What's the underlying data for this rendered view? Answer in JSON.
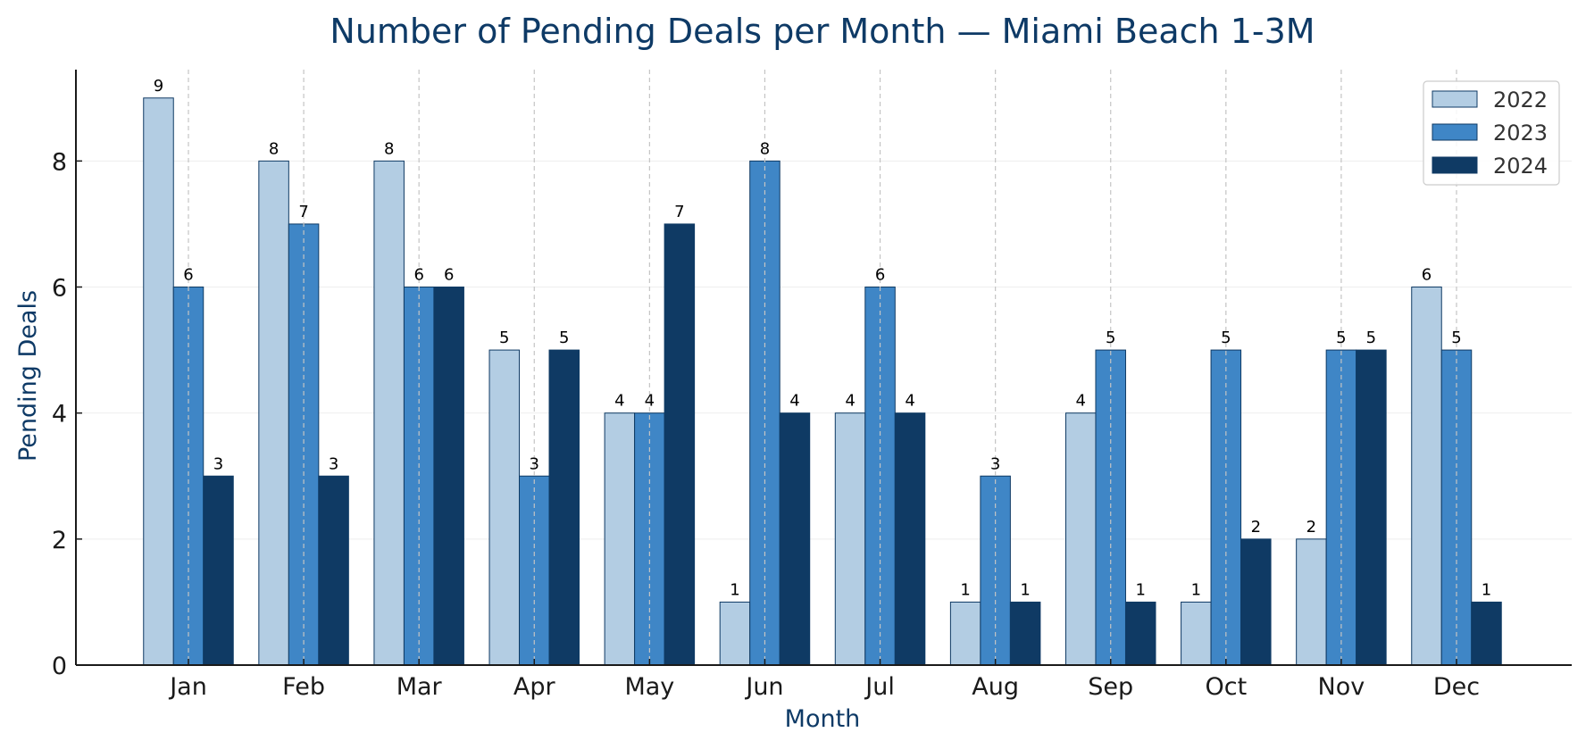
{
  "chart_data": {
    "type": "bar",
    "title": "Number of Pending Deals per Month — Miami Beach 1-3M",
    "xlabel": "Month",
    "ylabel": "Pending Deals",
    "categories": [
      "Jan",
      "Feb",
      "Mar",
      "Apr",
      "May",
      "Jun",
      "Jul",
      "Aug",
      "Sep",
      "Oct",
      "Nov",
      "Dec"
    ],
    "series": [
      {
        "name": "2022",
        "color": "#b3cde3",
        "values": [
          9,
          8,
          8,
          5,
          4,
          1,
          4,
          1,
          4,
          1,
          2,
          6
        ]
      },
      {
        "name": "2023",
        "color": "#3f86c6",
        "values": [
          6,
          7,
          6,
          3,
          4,
          8,
          6,
          3,
          5,
          5,
          5,
          5
        ]
      },
      {
        "name": "2024",
        "color": "#0f3a64",
        "values": [
          3,
          3,
          6,
          5,
          7,
          4,
          4,
          1,
          1,
          2,
          5,
          1
        ]
      }
    ],
    "ylim": [
      0,
      9.45
    ],
    "yticks": [
      0,
      2,
      4,
      6,
      8
    ],
    "grid": {
      "x": "dashed-vertical",
      "y": "faint-horizontal"
    },
    "legend_position": "top-right",
    "data_labels": true
  }
}
